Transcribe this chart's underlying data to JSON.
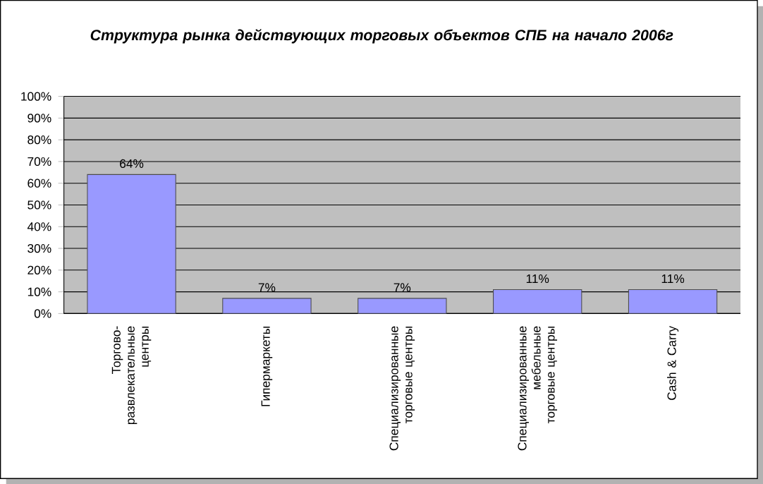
{
  "chart_data": {
    "type": "bar",
    "title": "Структура рынка действующих торговых объектов СПБ на начало 2006г",
    "categories": [
      "Торгово-развлекательные центры",
      "Гипермаркеты",
      "Специализированные торговые центры",
      "Специализированные мебельные торговые центры",
      "Cash & Carry"
    ],
    "values": [
      64,
      7,
      7,
      11,
      11
    ],
    "value_labels": [
      "64%",
      "7%",
      "7%",
      "11%",
      "11%"
    ],
    "color": "#9999ff",
    "ylim": [
      0,
      100
    ],
    "yticks": [
      {
        "value": 0,
        "label": "0%"
      },
      {
        "value": 10,
        "label": "10%"
      },
      {
        "value": 20,
        "label": "20%"
      },
      {
        "value": 30,
        "label": "30%"
      },
      {
        "value": 40,
        "label": "40%"
      },
      {
        "value": 50,
        "label": "50%"
      },
      {
        "value": 60,
        "label": "60%"
      },
      {
        "value": 70,
        "label": "70%"
      },
      {
        "value": 80,
        "label": "80%"
      },
      {
        "value": 90,
        "label": "90%"
      },
      {
        "value": 100,
        "label": "100%"
      }
    ],
    "grid": "y"
  }
}
